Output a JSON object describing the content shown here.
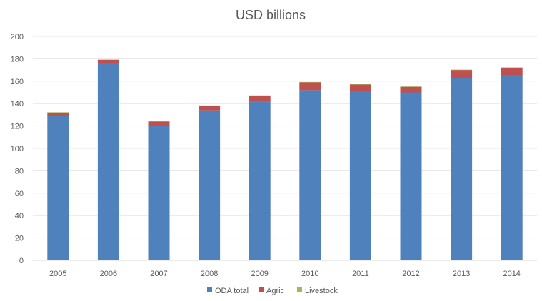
{
  "chart_data": {
    "type": "bar",
    "stacked": true,
    "title": "USD billions",
    "xlabel": "",
    "ylabel": "",
    "categories": [
      "2005",
      "2006",
      "2007",
      "2008",
      "2009",
      "2010",
      "2011",
      "2012",
      "2013",
      "2014"
    ],
    "ylim": [
      0,
      200
    ],
    "yticks": [
      0,
      20,
      40,
      60,
      80,
      100,
      120,
      140,
      160,
      180,
      200
    ],
    "grid": true,
    "legend_position": "bottom",
    "series": [
      {
        "name": "ODA total",
        "color": "#4f81bd",
        "values": [
          129,
          176,
          120,
          134,
          142,
          152,
          151,
          150,
          163,
          165
        ]
      },
      {
        "name": "Agric",
        "color": "#c0504d",
        "values": [
          3,
          3,
          4,
          4,
          5,
          7,
          6,
          5,
          7,
          7
        ]
      },
      {
        "name": "Livestock",
        "color": "#9bbb59",
        "values": [
          0.3,
          0.3,
          0.3,
          0.3,
          0.3,
          0.3,
          0.3,
          0.3,
          0.3,
          0.3
        ]
      }
    ]
  }
}
